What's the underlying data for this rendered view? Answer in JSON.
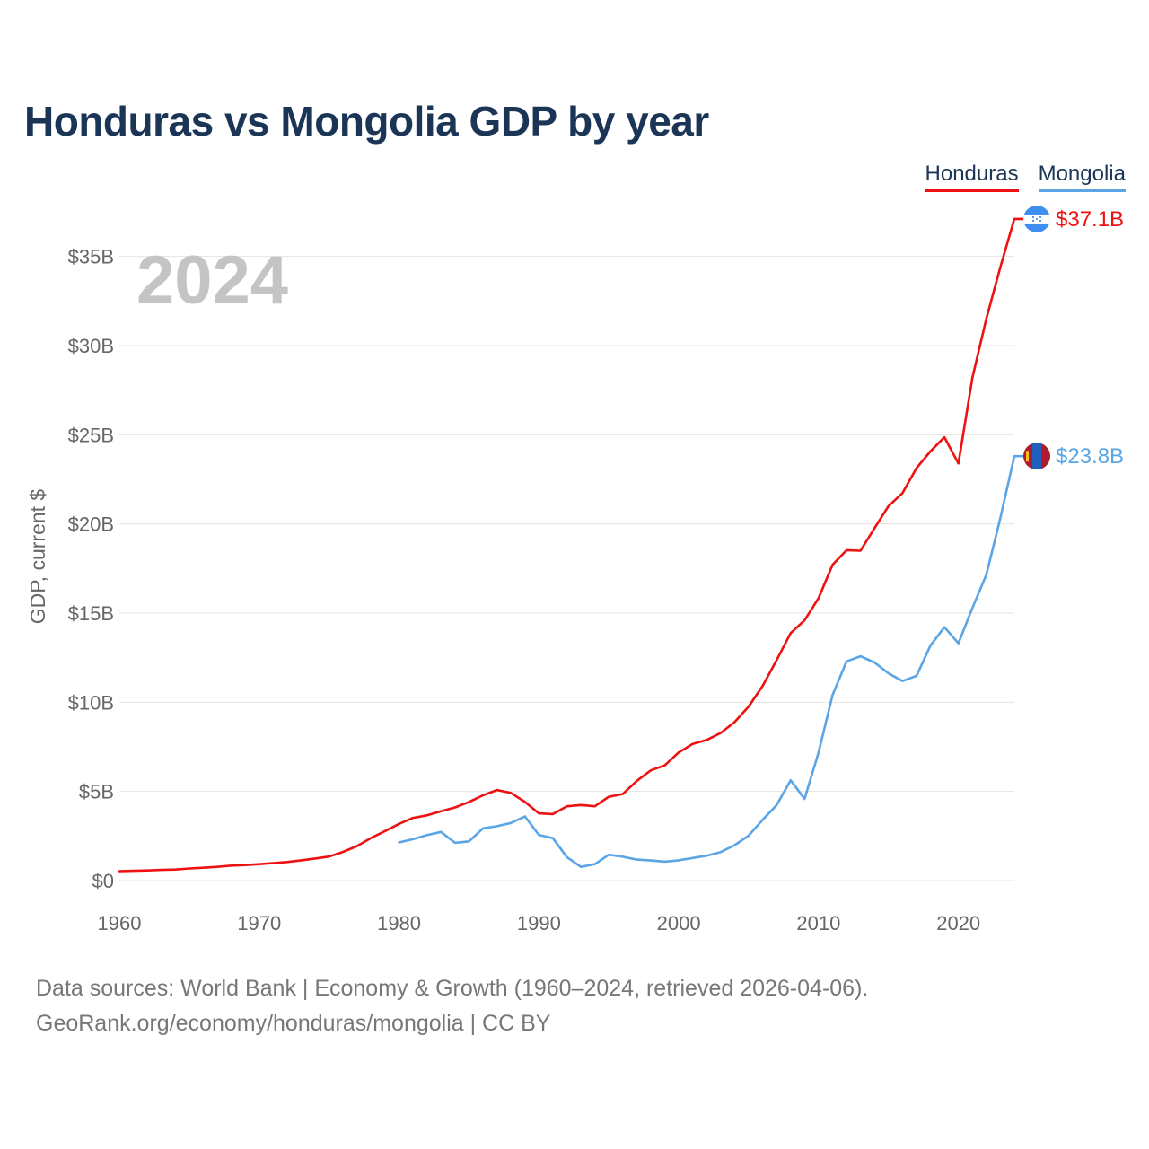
{
  "title": "Honduras vs Mongolia GDP by year",
  "legend": [
    {
      "name": "Honduras",
      "color": "#ee1111"
    },
    {
      "name": "Mongolia",
      "color": "#5aa5e6"
    }
  ],
  "footer": {
    "line1": "Data sources: World Bank | Economy & Growth (1960–2024, retrieved 2026-04-06).",
    "line2": "GeoRank.org/economy/honduras/mongolia | CC BY"
  },
  "chart_data": {
    "type": "line",
    "title": "Honduras vs Mongolia GDP by year",
    "xlabel": "",
    "ylabel": "GDP, current $",
    "big_year": "2024",
    "xlim": [
      1960,
      2024
    ],
    "ylim": [
      0,
      37.5
    ],
    "grid": true,
    "legend_position": "top-right",
    "x_ticks": [
      1960,
      1970,
      1980,
      1990,
      2000,
      2010,
      2020
    ],
    "x_tick_labels": [
      "1960",
      "1970",
      "1980",
      "1990",
      "2000",
      "2010",
      "2020"
    ],
    "y_ticks": [
      0,
      5,
      10,
      15,
      20,
      25,
      30,
      35
    ],
    "y_tick_labels": [
      "$0",
      "$5B",
      "$10B",
      "$15B",
      "$20B",
      "$25B",
      "$30B",
      "$35B"
    ],
    "series": [
      {
        "name": "Honduras",
        "color": "#ee1111",
        "end_label": "$37.1B",
        "flag": "honduras",
        "start_year": 1960,
        "values": [
          0.53,
          0.55,
          0.57,
          0.6,
          0.62,
          0.68,
          0.72,
          0.77,
          0.84,
          0.87,
          0.92,
          0.98,
          1.04,
          1.14,
          1.24,
          1.35,
          1.61,
          1.94,
          2.39,
          2.78,
          3.18,
          3.52,
          3.66,
          3.89,
          4.1,
          4.41,
          4.78,
          5.08,
          4.92,
          4.41,
          3.77,
          3.73,
          4.17,
          4.24,
          4.17,
          4.7,
          4.85,
          5.59,
          6.18,
          6.46,
          7.19,
          7.66,
          7.89,
          8.28,
          8.89,
          9.76,
          10.92,
          12.36,
          13.88,
          14.59,
          15.84,
          17.71,
          18.53,
          18.5,
          19.76,
          21.0,
          21.73,
          23.13,
          24.07,
          24.86,
          23.39,
          28.21,
          31.51,
          34.4,
          37.1
        ]
      },
      {
        "name": "Mongolia",
        "color": "#5aa5e6",
        "end_label": "$23.8B",
        "flag": "mongolia",
        "start_year": 1980,
        "values": [
          2.14,
          2.32,
          2.55,
          2.73,
          2.12,
          2.2,
          2.93,
          3.05,
          3.23,
          3.6,
          2.56,
          2.38,
          1.32,
          0.77,
          0.92,
          1.45,
          1.34,
          1.18,
          1.13,
          1.06,
          1.14,
          1.27,
          1.4,
          1.6,
          1.99,
          2.52,
          3.41,
          4.24,
          5.62,
          4.58,
          7.19,
          10.41,
          12.29,
          12.58,
          12.23,
          11.62,
          11.19,
          11.48,
          13.18,
          14.21,
          13.31,
          15.29,
          17.15,
          20.33,
          23.8
        ]
      }
    ]
  }
}
